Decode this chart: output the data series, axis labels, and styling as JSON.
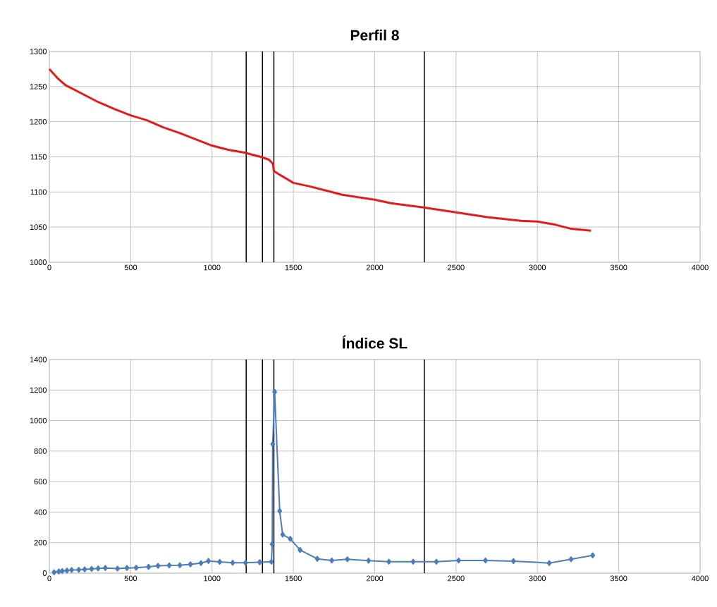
{
  "chart_data": [
    {
      "type": "line",
      "title": "Perfil 8",
      "color": "#e41a1c",
      "marker": "none",
      "grid": true,
      "x": [
        0,
        50,
        100,
        200,
        300,
        400,
        500,
        600,
        700,
        800,
        900,
        1000,
        1100,
        1200,
        1300,
        1350,
        1375,
        1380,
        1420,
        1500,
        1600,
        1700,
        1800,
        2000,
        2100,
        2300,
        2500,
        2700,
        2900,
        3000,
        3100,
        3200,
        3330
      ],
      "values": [
        1275,
        1262,
        1252,
        1240,
        1228,
        1218,
        1209,
        1202,
        1192,
        1184,
        1175,
        1166,
        1160,
        1156,
        1150,
        1146,
        1140,
        1130,
        1124,
        1113,
        1108,
        1102,
        1096,
        1089,
        1084,
        1078,
        1071,
        1064,
        1059,
        1058,
        1054,
        1048,
        1045
      ],
      "xlim": [
        0,
        4000
      ],
      "ylim": [
        1000,
        1300
      ],
      "xticks": [
        0,
        500,
        1000,
        1500,
        2000,
        2500,
        3000,
        3500,
        4000
      ],
      "yticks": [
        1000,
        1050,
        1100,
        1150,
        1200,
        1250,
        1300
      ],
      "ref_lines": [
        {
          "axis": "x",
          "value": 1210,
          "color": "#000000"
        },
        {
          "axis": "x",
          "value": 1310,
          "color": "#000000"
        },
        {
          "axis": "x",
          "value": 1380,
          "color": "#000000"
        },
        {
          "axis": "x",
          "value": 2305,
          "color": "#000000"
        }
      ]
    },
    {
      "type": "line",
      "title": "Índice SL",
      "color": "#4a7ebb",
      "marker": "diamond",
      "grid": true,
      "x": [
        29,
        58,
        79,
        108,
        137,
        181,
        217,
        260,
        300,
        344,
        419,
        477,
        534,
        610,
        668,
        737,
        802,
        867,
        932,
        978,
        1047,
        1127,
        1206,
        1293,
        1365,
        1370,
        1373,
        1385,
        1416,
        1434,
        1481,
        1541,
        1647,
        1736,
        1832,
        1962,
        2087,
        2236,
        2379,
        2516,
        2681,
        2853,
        3073,
        3207,
        3340
      ],
      "values": [
        6,
        11,
        14,
        17,
        21,
        22,
        25,
        28,
        31,
        34,
        30,
        34,
        36,
        41,
        48,
        51,
        52,
        58,
        66,
        80,
        74,
        68,
        68,
        72,
        75,
        190,
        846,
        1188,
        407,
        253,
        225,
        152,
        94,
        83,
        91,
        82,
        75,
        75,
        75,
        83,
        83,
        79,
        66,
        91,
        117
      ],
      "xlim": [
        0,
        4000
      ],
      "ylim": [
        0,
        1400
      ],
      "xticks": [
        0,
        500,
        1000,
        1500,
        2000,
        2500,
        3000,
        3500,
        4000
      ],
      "yticks": [
        0,
        200,
        400,
        600,
        800,
        1000,
        1200,
        1400
      ],
      "ref_lines": [
        {
          "axis": "x",
          "value": 1210,
          "color": "#000000"
        },
        {
          "axis": "x",
          "value": 1310,
          "color": "#000000"
        },
        {
          "axis": "x",
          "value": 1380,
          "color": "#000000"
        },
        {
          "axis": "x",
          "value": 2305,
          "color": "#000000"
        }
      ]
    }
  ]
}
